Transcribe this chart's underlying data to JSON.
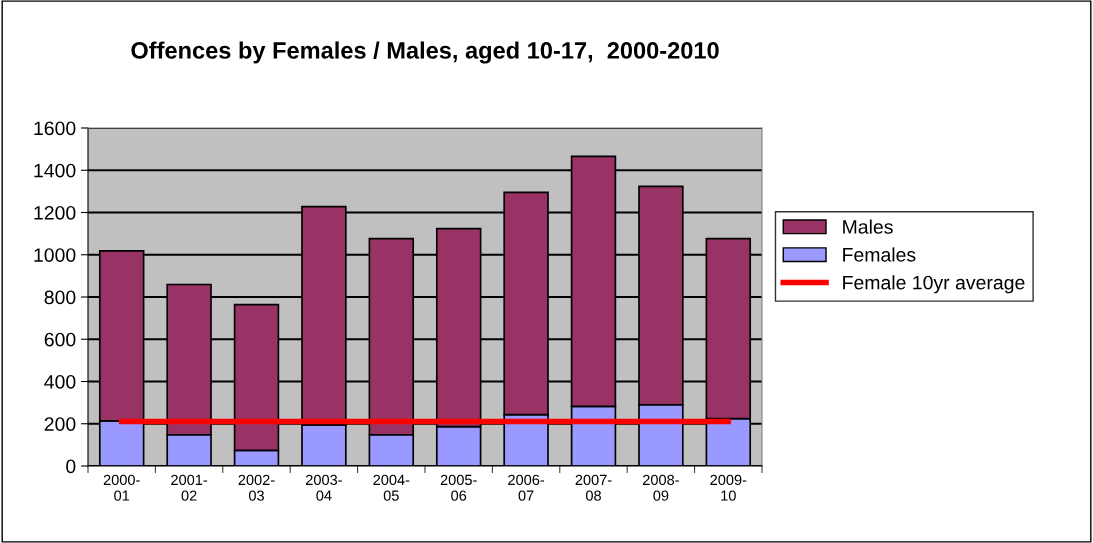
{
  "chart_data": {
    "type": "bar",
    "title": "Offences by Females / Males, aged 10-17,  2000-2010",
    "categories": [
      "2000-\n01",
      "2001-\n02",
      "2002-\n03",
      "2003-\n04",
      "2004-\n05",
      "2005-\n06",
      "2006-\n07",
      "2007-\n08",
      "2008-\n09",
      "2009-\n10"
    ],
    "stacked": true,
    "series": [
      {
        "name": "Females",
        "color": "#9999ff",
        "values": [
          214,
          148,
          74,
          195,
          148,
          186,
          243,
          282,
          290,
          224
        ]
      },
      {
        "name": "Males",
        "color": "#993366",
        "values": [
          804,
          711,
          690,
          1033,
          928,
          938,
          1052,
          1184,
          1034,
          852
        ]
      },
      {
        "name": "Female 10yr average",
        "type": "line",
        "color": "#ff0000",
        "values": [
          211,
          211,
          211,
          211,
          211,
          211,
          211,
          211,
          211,
          211
        ]
      }
    ],
    "ylim": [
      0,
      1600
    ],
    "yticks": [
      0,
      200,
      400,
      600,
      800,
      1000,
      1200,
      1400,
      1600
    ],
    "grid": "y",
    "legend": "right",
    "marker": "none",
    "line_style": "solid"
  }
}
